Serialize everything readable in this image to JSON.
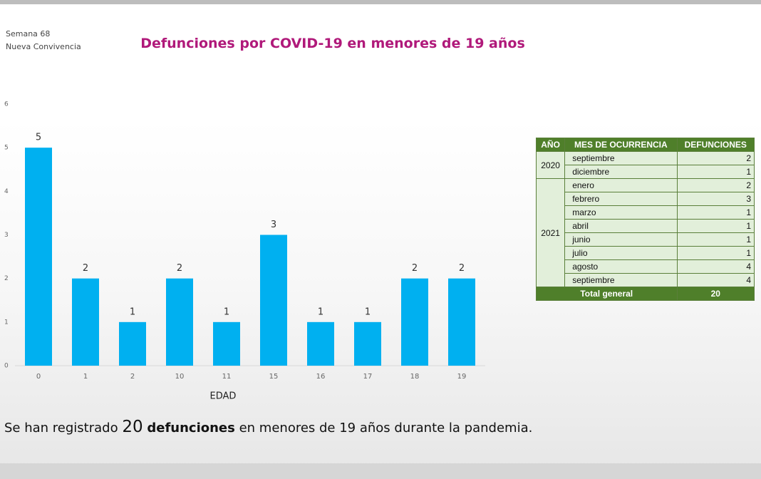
{
  "header": {
    "week": "Semana 68",
    "subtitle": "Nueva Convivencia"
  },
  "chart_data": {
    "type": "bar",
    "title": "Defunciones  por COVID-19  en menores de 19 años",
    "x_label": "EDAD",
    "categories": [
      "0",
      "1",
      "2",
      "10",
      "11",
      "15",
      "16",
      "17",
      "18",
      "19"
    ],
    "values": [
      5,
      2,
      1,
      2,
      1,
      3,
      1,
      1,
      2,
      2
    ],
    "color": "#00b0f0",
    "ylim": [
      0,
      6
    ],
    "yticks": [
      0,
      1,
      2,
      3,
      4,
      5,
      6
    ],
    "grid": false
  },
  "table": {
    "header": [
      "AÑO",
      "MES DE OCURRENCIA",
      "DEFUNCIONES"
    ],
    "groups": [
      {
        "year": "2020",
        "rows": [
          {
            "month": "septiembre",
            "count": 2
          },
          {
            "month": "diciembre",
            "count": 1
          }
        ]
      },
      {
        "year": "2021",
        "rows": [
          {
            "month": "enero",
            "count": 2
          },
          {
            "month": "febrero",
            "count": 3
          },
          {
            "month": "marzo",
            "count": 1
          },
          {
            "month": "abril",
            "count": 1
          },
          {
            "month": "junio",
            "count": 1
          },
          {
            "month": "julio",
            "count": 1
          },
          {
            "month": "agosto",
            "count": 4
          },
          {
            "month": "septiembre",
            "count": 4
          }
        ]
      }
    ],
    "total": {
      "label": "Total general",
      "value": 20
    }
  },
  "footer": {
    "lead": "Se han registrado",
    "number": "20",
    "bold": "defunciones",
    "rest": "en menores de 19 años durante la pandemia."
  }
}
